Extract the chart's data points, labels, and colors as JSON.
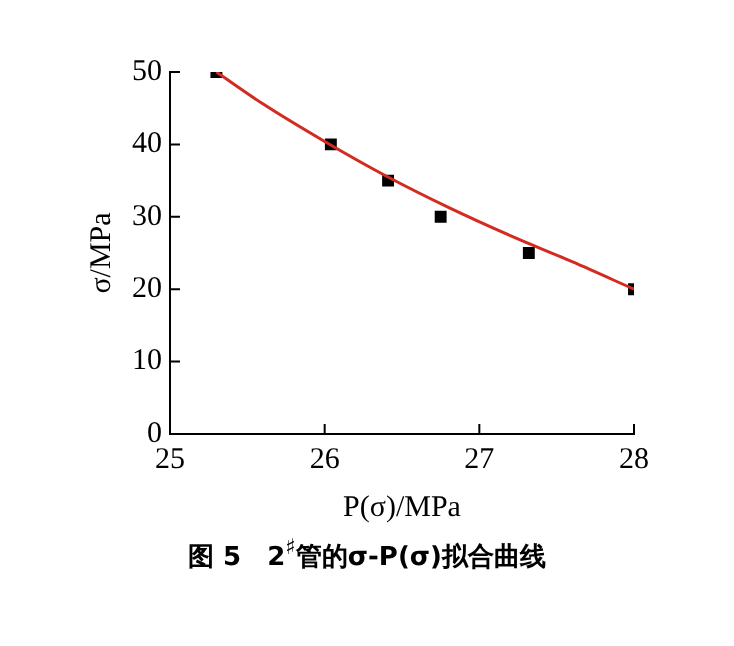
{
  "chart_data": {
    "type": "scatter",
    "title": "图 5　2$^{♯}$管的σ-P(σ)拟合曲线",
    "xlabel": "P(σ)/MPa",
    "ylabel": "σ/MPa",
    "xlim": [
      25,
      28
    ],
    "xticks": [
      25,
      26,
      27,
      28
    ],
    "ylim": [
      0,
      50
    ],
    "yticks": [
      0,
      10,
      20,
      30,
      40,
      50
    ],
    "grid": false,
    "legend": false,
    "series": [
      {
        "type": "scatter",
        "color": "#000000",
        "marker": "square",
        "x": [
          25.3,
          26.04,
          26.41,
          26.75,
          27.32,
          28
        ],
        "values": [
          50,
          40,
          35,
          30,
          25,
          20
        ]
      },
      {
        "type": "line",
        "color": "#d42a20",
        "marker": "none",
        "line_style": "solid",
        "x": [
          25.3,
          25.6,
          26,
          26.4,
          26.8,
          27.2,
          27.6,
          28
        ],
        "values": [
          50,
          45.6,
          40.4,
          35.6,
          31.3,
          27.4,
          23.8,
          20
        ]
      }
    ]
  }
}
